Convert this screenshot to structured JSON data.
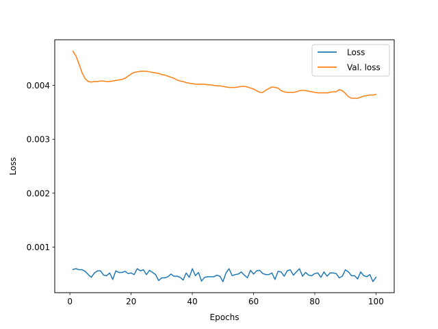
{
  "chart_data": {
    "type": "line",
    "title": "",
    "xlabel": "Epochs",
    "ylabel": "Loss",
    "xlim": [
      -4.95,
      105.95
    ],
    "ylim": [
      0.000155,
      0.004845
    ],
    "xticks": [
      0,
      20,
      40,
      60,
      80,
      100
    ],
    "xtick_labels": [
      "0",
      "20",
      "40",
      "60",
      "80",
      "100"
    ],
    "yticks": [
      0.001,
      0.002,
      0.003,
      0.004
    ],
    "ytick_labels": [
      "0.001",
      "0.002",
      "0.003",
      "0.004"
    ],
    "grid": false,
    "legend_position": "top-right",
    "x": [
      1,
      2,
      3,
      4,
      5,
      6,
      7,
      8,
      9,
      10,
      11,
      12,
      13,
      14,
      15,
      16,
      17,
      18,
      19,
      20,
      21,
      22,
      23,
      24,
      25,
      26,
      27,
      28,
      29,
      30,
      31,
      32,
      33,
      34,
      35,
      36,
      37,
      38,
      39,
      40,
      41,
      42,
      43,
      44,
      45,
      46,
      47,
      48,
      49,
      50,
      51,
      52,
      53,
      54,
      55,
      56,
      57,
      58,
      59,
      60,
      61,
      62,
      63,
      64,
      65,
      66,
      67,
      68,
      69,
      70,
      71,
      72,
      73,
      74,
      75,
      76,
      77,
      78,
      79,
      80,
      81,
      82,
      83,
      84,
      85,
      86,
      87,
      88,
      89,
      90,
      91,
      92,
      93,
      94,
      95,
      96,
      97,
      98,
      99,
      100
    ],
    "series": [
      {
        "name": "Loss",
        "color": "#1f77b4",
        "values": [
          0.000585,
          0.0006,
          0.00058,
          0.00058,
          0.00055,
          0.00049,
          0.00044,
          0.00052,
          0.00056,
          0.00056,
          0.00048,
          0.00047,
          0.00052,
          0.0004,
          0.00056,
          0.00053,
          0.00053,
          0.00055,
          0.00051,
          0.00052,
          0.00049,
          0.0006,
          0.00056,
          0.00058,
          0.00049,
          0.00057,
          0.00053,
          0.00049,
          0.00038,
          0.00043,
          0.00043,
          0.00045,
          0.0005,
          0.00046,
          0.00046,
          0.00044,
          0.00039,
          0.00052,
          0.00044,
          0.0006,
          0.00047,
          0.00053,
          0.00037,
          0.00044,
          0.00045,
          0.00045,
          0.00045,
          0.00048,
          0.00046,
          0.00036,
          0.00052,
          0.0006,
          0.00047,
          0.00049,
          0.0005,
          0.00054,
          0.00048,
          0.00043,
          0.00057,
          0.0005,
          0.00056,
          0.00057,
          0.00051,
          0.00049,
          0.00049,
          0.00052,
          0.0004,
          0.00055,
          0.00054,
          0.00046,
          0.00056,
          0.00058,
          0.00048,
          0.00054,
          0.0006,
          0.00046,
          0.00053,
          0.00048,
          0.00047,
          0.00051,
          0.00052,
          0.00044,
          0.00054,
          0.00046,
          0.00052,
          0.00052,
          0.00051,
          0.00043,
          0.00046,
          0.00058,
          0.00054,
          0.00047,
          0.00047,
          0.00041,
          0.00054,
          0.00047,
          0.00045,
          0.00049,
          0.00036,
          0.00044
        ]
      },
      {
        "name": "Val. loss",
        "color": "#ff7f0e",
        "values": [
          0.00463,
          0.00454,
          0.00439,
          0.00423,
          0.00412,
          0.00407,
          0.00406,
          0.00407,
          0.00407,
          0.00408,
          0.00408,
          0.00407,
          0.00407,
          0.00408,
          0.00409,
          0.0041,
          0.00411,
          0.00413,
          0.00417,
          0.00421,
          0.00424,
          0.00425,
          0.00426,
          0.00426,
          0.00426,
          0.00425,
          0.00424,
          0.00423,
          0.00422,
          0.0042,
          0.00419,
          0.00417,
          0.00415,
          0.00413,
          0.0041,
          0.00408,
          0.00407,
          0.00405,
          0.00404,
          0.00403,
          0.00402,
          0.00402,
          0.00402,
          0.00402,
          0.00401,
          0.00401,
          0.004,
          0.00399,
          0.00399,
          0.00398,
          0.00397,
          0.00396,
          0.00396,
          0.00396,
          0.00397,
          0.00398,
          0.00398,
          0.00397,
          0.00395,
          0.00393,
          0.0039,
          0.00387,
          0.00387,
          0.00391,
          0.00394,
          0.00397,
          0.00396,
          0.00395,
          0.0039,
          0.00388,
          0.00387,
          0.00387,
          0.00387,
          0.00388,
          0.0039,
          0.00391,
          0.0039,
          0.00389,
          0.00388,
          0.00387,
          0.00386,
          0.00386,
          0.00386,
          0.00386,
          0.00387,
          0.00388,
          0.00388,
          0.00392,
          0.0039,
          0.00385,
          0.00379,
          0.00376,
          0.00376,
          0.00376,
          0.00378,
          0.0038,
          0.00381,
          0.00382,
          0.00382,
          0.00383
        ]
      }
    ]
  }
}
